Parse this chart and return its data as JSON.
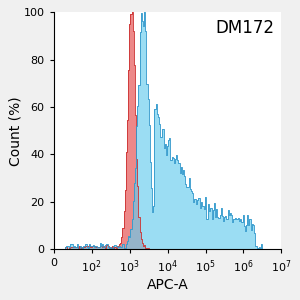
{
  "title": "DM172",
  "xlabel": "APC-A",
  "ylabel": "Count (%)",
  "ylim": [
    0,
    100
  ],
  "yticks": [
    0,
    20,
    40,
    60,
    80,
    100
  ],
  "red_color": "#E86060",
  "red_edge": "#CC3333",
  "blue_color": "#66CCEE",
  "blue_edge": "#3399CC",
  "red_alpha": 0.75,
  "blue_alpha": 0.65,
  "background_color": "#F0F0F0",
  "plot_bg": "#FFFFFF",
  "title_fontsize": 12,
  "axis_fontsize": 10,
  "tick_fontsize": 8
}
